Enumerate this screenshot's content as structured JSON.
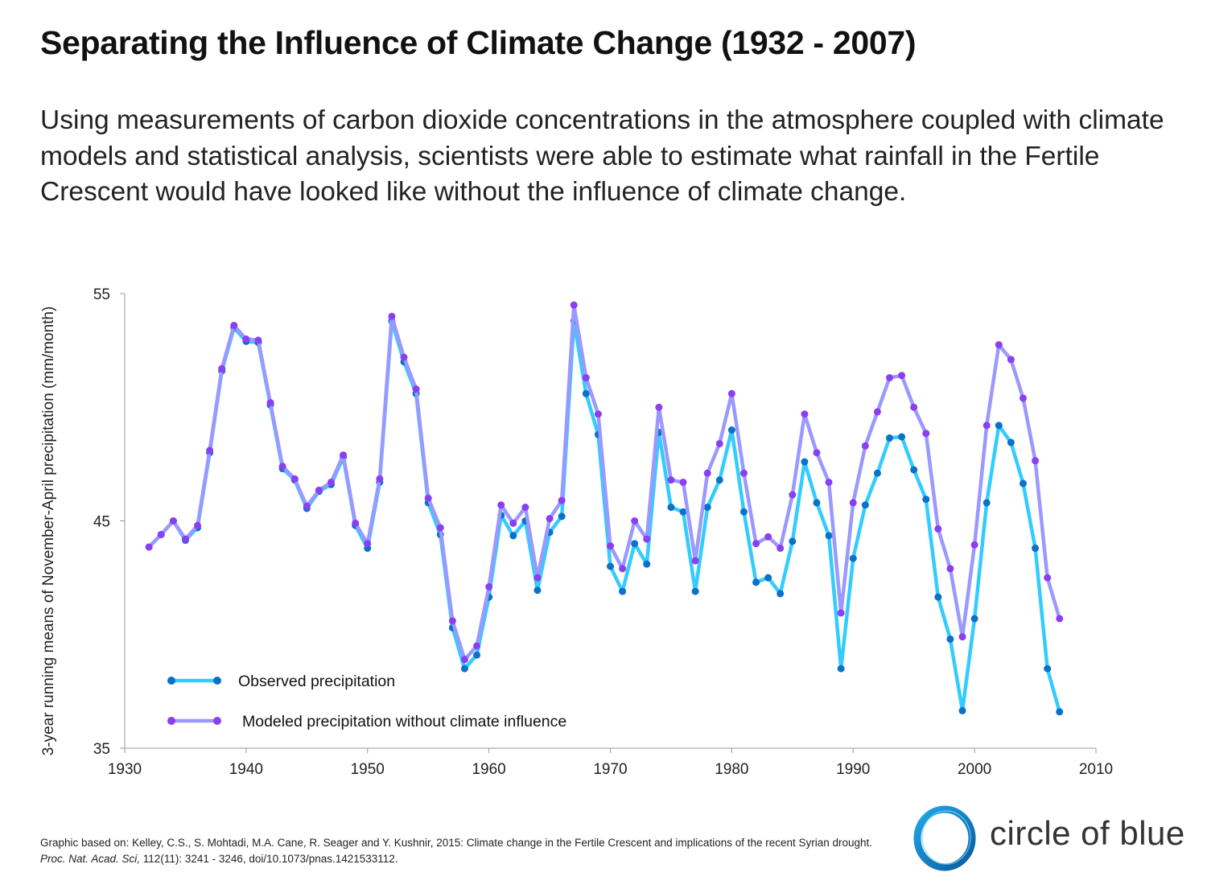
{
  "header": {
    "title": "Separating the Influence of Climate Change (1932 - 2007)",
    "subtitle": "Using measurements of carbon dioxide concentrations in the atmosphere coupled with climate models and statistical analysis, scientists were able to estimate what rainfall in the Fertile Crescent would have looked like without the influence of climate change."
  },
  "chart_data": {
    "type": "line",
    "title": "",
    "xlabel": "",
    "ylabel": "3-year running means of November-April precipitation (mm/month)",
    "xlim": [
      1930,
      2010
    ],
    "ylim": [
      35,
      55
    ],
    "x_ticks": [
      "1930",
      "1940",
      "1950",
      "1960",
      "1970",
      "1980",
      "1990",
      "2000",
      "2010"
    ],
    "y_ticks": [
      "35",
      "45",
      "55"
    ],
    "grid": false,
    "legend_placement": "bottom-left",
    "x": [
      1932,
      1933,
      1934,
      1935,
      1936,
      1937,
      1938,
      1939,
      1940,
      1941,
      1942,
      1943,
      1944,
      1945,
      1946,
      1947,
      1948,
      1949,
      1950,
      1951,
      1952,
      1953,
      1954,
      1955,
      1956,
      1957,
      1958,
      1959,
      1960,
      1961,
      1962,
      1963,
      1964,
      1965,
      1966,
      1967,
      1968,
      1969,
      1970,
      1971,
      1972,
      1973,
      1974,
      1975,
      1976,
      1977,
      1978,
      1979,
      1980,
      1981,
      1982,
      1983,
      1984,
      1985,
      1986,
      1987,
      1988,
      1989,
      1990,
      1991,
      1992,
      1993,
      1994,
      1995,
      1996,
      1997,
      1998,
      1999,
      2000,
      2001,
      2002,
      2003,
      2004,
      2005,
      2006,
      2007
    ],
    "series": [
      {
        "name": "Observed precipitation",
        "line_color": "#33ccff",
        "marker_color": "#0a72c9",
        "values": [
          43.85,
          44.4,
          45.0,
          44.15,
          44.7,
          48.0,
          51.6,
          53.5,
          52.9,
          52.85,
          50.1,
          47.3,
          46.8,
          45.55,
          46.3,
          46.6,
          47.8,
          44.8,
          43.8,
          46.7,
          53.8,
          52.0,
          50.6,
          45.8,
          44.4,
          40.3,
          38.5,
          39.1,
          41.65,
          45.25,
          44.35,
          45.0,
          41.95,
          44.5,
          45.2,
          53.8,
          50.6,
          48.8,
          43.0,
          41.9,
          44.0,
          43.1,
          48.9,
          45.6,
          45.4,
          41.9,
          45.6,
          46.8,
          49.0,
          45.4,
          42.3,
          42.5,
          41.8,
          44.1,
          47.6,
          45.8,
          44.35,
          38.5,
          43.35,
          45.7,
          47.1,
          48.65,
          48.7,
          47.25,
          45.95,
          41.65,
          39.8,
          36.65,
          40.7,
          45.8,
          49.2,
          48.45,
          46.65,
          43.8,
          38.5,
          36.6
        ]
      },
      {
        "name": "Modeled precipitation without climate influence",
        "line_color": "#9b98ff",
        "marker_color": "#8a3ff0",
        "values": [
          43.85,
          44.4,
          45.0,
          44.2,
          44.8,
          48.1,
          51.7,
          53.6,
          53.0,
          52.95,
          50.2,
          47.4,
          46.85,
          45.65,
          46.35,
          46.7,
          47.9,
          44.9,
          44.0,
          46.85,
          54.0,
          52.2,
          50.8,
          46.0,
          44.7,
          40.6,
          38.9,
          39.5,
          42.1,
          45.7,
          44.9,
          45.6,
          42.5,
          45.1,
          45.9,
          54.5,
          51.3,
          49.7,
          43.9,
          42.9,
          45.0,
          44.2,
          50.0,
          46.8,
          46.7,
          43.25,
          47.1,
          48.4,
          50.6,
          47.1,
          44.0,
          44.3,
          43.8,
          46.15,
          49.7,
          48.0,
          46.7,
          40.95,
          45.8,
          48.3,
          49.8,
          51.3,
          51.4,
          50.0,
          48.85,
          44.65,
          42.9,
          39.9,
          43.95,
          49.2,
          52.75,
          52.1,
          50.4,
          47.65,
          42.5,
          40.7
        ]
      }
    ]
  },
  "footnote": {
    "part1": "Graphic based on: Kelley, C.S., S. Mohtadi, M.A. Cane, R. Seager and Y. Kushnir, 2015: Climate change in the Fertile Crescent and implications of the recent Syrian drought. ",
    "journal": "Proc. Nat. Acad. Sci,",
    "part2": " 112(11): 3241 - 3246, doi/10.1073/pnas.1421533112."
  },
  "logo": {
    "text": "circle of blue",
    "ring_color": "#0a82c9"
  }
}
